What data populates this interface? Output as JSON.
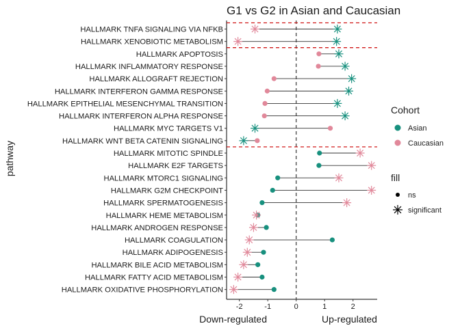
{
  "chart_data": {
    "type": "dumbbell",
    "title": "G1 vs G2 in Asian and Caucasian",
    "xlabel_left": "Down-regulated",
    "xlabel_right": "Up-regulated",
    "ylabel": "pathway",
    "xlim": [
      -2.45,
      2.85
    ],
    "xticks": [
      -2,
      -1,
      0,
      1,
      2
    ],
    "xtick_labels": [
      "-2",
      "-1",
      "0",
      "1",
      "2"
    ],
    "grid": false,
    "vline_x": 0,
    "group_separators_after_rows": [
      2,
      10
    ],
    "legend_position": "right",
    "legend_cohort": {
      "title": "Cohort",
      "items": [
        {
          "label": "Asian",
          "color": "#17907e"
        },
        {
          "label": "Caucasian",
          "color": "#e1889a"
        }
      ]
    },
    "legend_fill": {
      "title": "fill",
      "items": [
        {
          "label": "ns",
          "marker": "dot"
        },
        {
          "label": "significant",
          "marker": "star"
        }
      ]
    },
    "rows": [
      {
        "pathway": "HALLMARK TNFA SIGNALING VIA NFKB",
        "asian": 1.45,
        "asian_sig": true,
        "caucasian": -1.45,
        "caucasian_sig": true
      },
      {
        "pathway": "HALLMARK XENOBIOTIC METABOLISM",
        "asian": 1.42,
        "asian_sig": true,
        "caucasian": -2.05,
        "caucasian_sig": true
      },
      {
        "pathway": "HALLMARK APOPTOSIS",
        "asian": 1.5,
        "asian_sig": true,
        "caucasian": 0.8,
        "caucasian_sig": false
      },
      {
        "pathway": "HALLMARK INFLAMMATORY RESPONSE",
        "asian": 1.72,
        "asian_sig": true,
        "caucasian": 0.78,
        "caucasian_sig": false
      },
      {
        "pathway": "HALLMARK ALLOGRAFT REJECTION",
        "asian": 1.95,
        "asian_sig": true,
        "caucasian": -0.78,
        "caucasian_sig": false
      },
      {
        "pathway": "HALLMARK INTERFERON GAMMA RESPONSE",
        "asian": 1.85,
        "asian_sig": true,
        "caucasian": -1.02,
        "caucasian_sig": false
      },
      {
        "pathway": "HALLMARK EPITHELIAL MESENCHYMAL TRANSITION",
        "asian": 1.45,
        "asian_sig": true,
        "caucasian": -1.1,
        "caucasian_sig": false
      },
      {
        "pathway": "HALLMARK INTERFERON ALPHA RESPONSE",
        "asian": 1.72,
        "asian_sig": true,
        "caucasian": -1.12,
        "caucasian_sig": false
      },
      {
        "pathway": "HALLMARK MYC TARGETS V1",
        "asian": -1.45,
        "asian_sig": true,
        "caucasian": 1.2,
        "caucasian_sig": false
      },
      {
        "pathway": "HALLMARK WNT BETA CATENIN SIGNALING",
        "asian": -1.85,
        "asian_sig": true,
        "caucasian": -1.37,
        "caucasian_sig": false
      },
      {
        "pathway": "HALLMARK MITOTIC SPINDLE",
        "asian": 0.82,
        "asian_sig": false,
        "caucasian": 2.25,
        "caucasian_sig": true
      },
      {
        "pathway": "HALLMARK E2F TARGETS",
        "asian": 0.8,
        "asian_sig": false,
        "caucasian": 2.65,
        "caucasian_sig": true
      },
      {
        "pathway": "HALLMARK MTORC1 SIGNALING",
        "asian": -0.65,
        "asian_sig": false,
        "caucasian": 1.5,
        "caucasian_sig": true
      },
      {
        "pathway": "HALLMARK G2M CHECKPOINT",
        "asian": -0.83,
        "asian_sig": false,
        "caucasian": 2.65,
        "caucasian_sig": true
      },
      {
        "pathway": "HALLMARK SPERMATOGENESIS",
        "asian": -1.2,
        "asian_sig": false,
        "caucasian": 1.78,
        "caucasian_sig": true
      },
      {
        "pathway": "HALLMARK HEME METABOLISM",
        "asian": -1.35,
        "asian_sig": false,
        "caucasian": -1.4,
        "caucasian_sig": true
      },
      {
        "pathway": "HALLMARK ANDROGEN RESPONSE",
        "asian": -1.05,
        "asian_sig": false,
        "caucasian": -1.5,
        "caucasian_sig": true
      },
      {
        "pathway": "HALLMARK COAGULATION",
        "asian": 1.27,
        "asian_sig": false,
        "caucasian": -1.65,
        "caucasian_sig": true
      },
      {
        "pathway": "HALLMARK ADIPOGENESIS",
        "asian": -1.15,
        "asian_sig": false,
        "caucasian": -1.72,
        "caucasian_sig": true
      },
      {
        "pathway": "HALLMARK BILE ACID METABOLISM",
        "asian": -1.35,
        "asian_sig": false,
        "caucasian": -1.85,
        "caucasian_sig": true
      },
      {
        "pathway": "HALLMARK FATTY ACID METABOLISM",
        "asian": -1.2,
        "asian_sig": false,
        "caucasian": -2.05,
        "caucasian_sig": true
      },
      {
        "pathway": "HALLMARK OXIDATIVE PHOSPHORYLATION",
        "asian": -0.78,
        "asian_sig": false,
        "caucasian": -2.2,
        "caucasian_sig": true
      }
    ]
  }
}
